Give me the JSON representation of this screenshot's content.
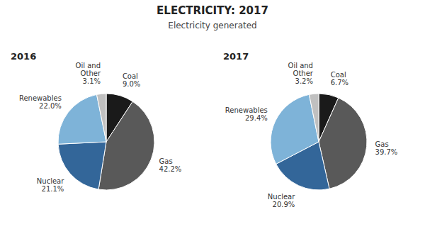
{
  "chart_data": {
    "type": "pie",
    "title": "ELECTRICITY: 2017",
    "subtitle": "Electricity generated",
    "categories": [
      "Coal",
      "Gas",
      "Nuclear",
      "Renewables",
      "Oil and\nOther"
    ],
    "colors": [
      "#1a1a1a",
      "#595959",
      "#336699",
      "#7eb3d8",
      "#c0c0c0"
    ],
    "data_labels": true,
    "series": [
      {
        "name": "2016",
        "values": [
          9.0,
          42.2,
          21.1,
          22.0,
          3.1
        ],
        "value_labels": [
          "9.0%",
          "42.2%",
          "21.1%",
          "22.0%",
          "3.1%"
        ]
      },
      {
        "name": "2017",
        "values": [
          6.7,
          39.7,
          20.9,
          29.4,
          3.2
        ],
        "value_labels": [
          "6.7%",
          "39.7%",
          "20.9%",
          "29.4%",
          "3.2%"
        ]
      }
    ]
  }
}
